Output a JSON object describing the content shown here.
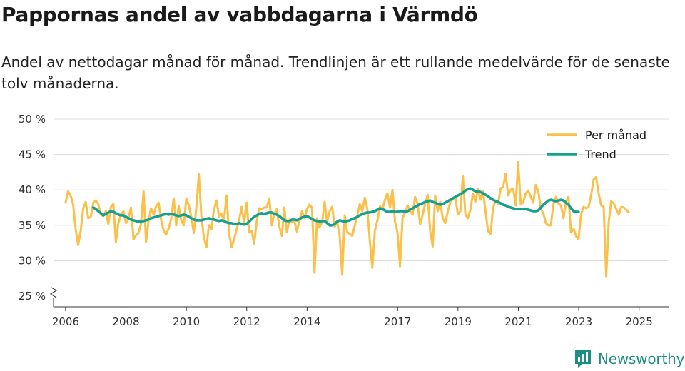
{
  "title": "Pappornas andel av vabbdagarna i Värmdö",
  "subtitle": "Andel av nettodagar månad för månad. Trendlinjen är ett rullande medelvärde för de senaste tolv månaderna.",
  "brand": {
    "name": "Newsworthy",
    "color": "#1c8f82"
  },
  "chart_data": {
    "type": "line",
    "ylim": [
      25,
      50
    ],
    "yticks": [
      {
        "value": 25,
        "label": "25 %"
      },
      {
        "value": 30,
        "label": "30 %"
      },
      {
        "value": 35,
        "label": "35 %"
      },
      {
        "value": 40,
        "label": "40 %"
      },
      {
        "value": 45,
        "label": "45 %"
      },
      {
        "value": 50,
        "label": "50 %"
      }
    ],
    "xlim": [
      2005.6,
      2026.0
    ],
    "xticks": [
      {
        "value": 2006,
        "label": "2006"
      },
      {
        "value": 2008,
        "label": "2008"
      },
      {
        "value": 2010,
        "label": "2010"
      },
      {
        "value": 2012,
        "label": "2012"
      },
      {
        "value": 2014,
        "label": "2014"
      },
      {
        "value": 2017,
        "label": "2017"
      },
      {
        "value": 2019,
        "label": "2019"
      },
      {
        "value": 2021,
        "label": "2021"
      },
      {
        "value": 2023,
        "label": "2023"
      },
      {
        "value": 2025,
        "label": "2025"
      }
    ],
    "axis_break": true,
    "grid": true,
    "legend_position": "top-right",
    "series": [
      {
        "name": "Per månad",
        "color": "#fbc04a",
        "x_start": 2006.0,
        "step": 0.0833,
        "values": [
          38.2,
          39.8,
          39.2,
          37.9,
          34.5,
          32.2,
          34.2,
          37.4,
          38.3,
          36.0,
          36.2,
          38.2,
          38.5,
          38.0,
          36.5,
          36.3,
          37.0,
          35.2,
          37.6,
          38.0,
          32.6,
          35.3,
          36.5,
          37.0,
          35.3,
          36.0,
          37.5,
          33.0,
          33.6,
          33.9,
          35.2,
          39.8,
          32.6,
          35.7,
          37.4,
          36.5,
          37.7,
          38.2,
          35.8,
          34.2,
          33.7,
          34.6,
          35.9,
          38.8,
          35.0,
          37.7,
          35.7,
          35.0,
          38.8,
          37.8,
          36.2,
          33.9,
          37.6,
          42.2,
          36.3,
          33.3,
          31.9,
          35.0,
          34.5,
          37.2,
          38.5,
          36.2,
          36.6,
          35.7,
          39.2,
          33.9,
          31.9,
          33.0,
          34.4,
          35.7,
          37.6,
          35.3,
          38.2,
          34.0,
          34.2,
          32.4,
          35.5,
          37.4,
          37.3,
          37.5,
          37.5,
          38.8,
          35.0,
          36.6,
          37.3,
          34.8,
          33.5,
          37.5,
          34.0,
          35.8,
          35.4,
          35.6,
          34.1,
          35.7,
          37.0,
          36.0,
          37.3,
          37.9,
          37.5,
          28.3,
          36.0,
          34.7,
          35.5,
          38.3,
          35.5,
          37.0,
          37.6,
          34.8,
          35.5,
          33.5,
          28.0,
          36.4,
          34.0,
          33.8,
          33.5,
          35.0,
          36.3,
          38.0,
          37.0,
          38.9,
          37.3,
          32.8,
          29.0,
          34.3,
          35.7,
          37.7,
          37.2,
          38.6,
          39.5,
          37.5,
          40.0,
          35.5,
          34.0,
          29.2,
          36.0,
          36.8,
          37.8,
          37.0,
          36.5,
          39.0,
          38.0,
          35.1,
          36.5,
          38.0,
          39.3,
          34.2,
          32.0,
          39.2,
          37.0,
          38.3,
          36.0,
          35.3,
          37.0,
          38.3,
          38.7,
          39.0,
          36.5,
          37.0,
          42.0,
          36.5,
          36.0,
          37.2,
          39.5,
          38.3,
          40.1,
          38.6,
          39.8,
          37.0,
          34.2,
          33.8,
          37.4,
          38.5,
          38.0,
          40.2,
          40.4,
          42.3,
          39.2,
          40.0,
          40.2,
          37.8,
          43.9,
          38.0,
          38.2,
          39.5,
          39.9,
          39.0,
          38.2,
          40.7,
          39.8,
          37.3,
          36.7,
          35.3,
          35.0,
          35.0,
          38.0,
          39.0,
          38.1,
          37.8,
          36.0,
          38.3,
          39.0,
          34.0,
          34.5,
          33.5,
          33.0,
          36.5,
          37.6,
          37.4,
          37.6,
          39.2,
          41.5,
          41.8,
          39.5,
          37.8,
          37.6,
          27.8,
          35.5,
          38.4,
          38.1,
          37.3,
          36.5,
          37.6,
          37.5,
          37.2,
          36.8
        ]
      },
      {
        "name": "Trend",
        "color": "#16a08f",
        "x_start": 2006.9167,
        "step": 0.0833,
        "values": [
          37.5,
          37.3,
          37.0,
          36.7,
          36.4,
          36.6,
          36.8,
          37.0,
          36.9,
          36.7,
          36.5,
          36.4,
          36.4,
          36.2,
          36.0,
          35.8,
          35.7,
          35.6,
          35.5,
          35.5,
          35.6,
          35.7,
          35.8,
          36.0,
          36.1,
          36.2,
          36.3,
          36.4,
          36.5,
          36.6,
          36.5,
          36.6,
          36.5,
          36.4,
          36.3,
          36.4,
          36.5,
          36.4,
          36.2,
          36.0,
          35.8,
          35.7,
          35.7,
          35.7,
          35.8,
          35.9,
          36.0,
          35.9,
          35.8,
          35.7,
          35.6,
          35.7,
          35.6,
          35.4,
          35.3,
          35.3,
          35.2,
          35.2,
          35.3,
          35.2,
          35.1,
          35.2,
          35.5,
          35.9,
          36.2,
          36.4,
          36.6,
          36.7,
          36.6,
          36.7,
          36.8,
          36.8,
          36.6,
          36.5,
          36.3,
          36.0,
          35.7,
          35.6,
          35.6,
          35.8,
          35.8,
          35.7,
          35.9,
          36.1,
          36.2,
          36.3,
          36.1,
          35.9,
          35.7,
          35.6,
          35.5,
          35.6,
          35.6,
          35.3,
          35.0,
          35.0,
          35.2,
          35.5,
          35.7,
          35.6,
          35.5,
          35.6,
          35.7,
          35.9,
          36.0,
          36.2,
          36.4,
          36.6,
          36.7,
          36.8,
          36.8,
          36.9,
          37.0,
          37.2,
          37.4,
          37.3,
          37.1,
          36.9,
          36.9,
          37.0,
          36.9,
          36.9,
          37.0,
          37.0,
          36.9,
          37.0,
          37.2,
          37.4,
          37.6,
          37.8,
          38.0,
          38.1,
          38.3,
          38.4,
          38.5,
          38.3,
          38.2,
          38.0,
          37.9,
          38.0,
          38.2,
          38.4,
          38.6,
          38.8,
          39.0,
          39.2,
          39.4,
          39.6,
          39.9,
          40.1,
          40.2,
          40.0,
          39.8,
          39.8,
          39.7,
          39.5,
          39.3,
          39.1,
          38.8,
          38.6,
          38.4,
          38.3,
          38.1,
          37.9,
          37.8,
          37.6,
          37.5,
          37.4,
          37.3,
          37.3,
          37.3,
          37.3,
          37.3,
          37.2,
          37.1,
          37.0,
          37.0,
          37.1,
          37.5,
          37.9,
          38.2,
          38.5,
          38.6,
          38.5,
          38.4,
          38.5,
          38.6,
          38.5,
          38.2,
          37.9,
          37.4,
          37.0,
          36.9,
          36.9
        ]
      }
    ]
  }
}
